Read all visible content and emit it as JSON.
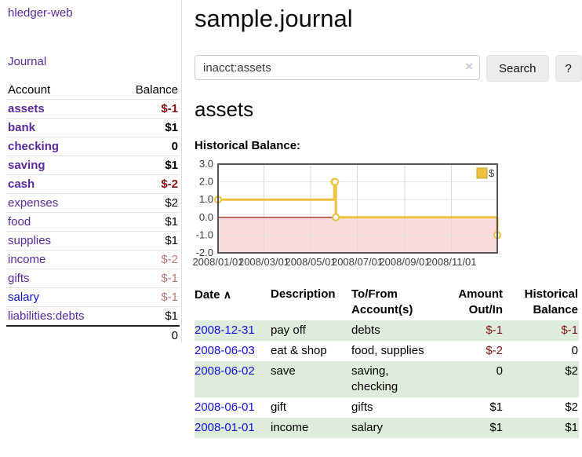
{
  "app": {
    "brand": "hledger-web",
    "nav_journal": "Journal"
  },
  "colors": {
    "accent_purple": "#5b2a9d",
    "link_blue": "#0f10dc",
    "negative_strong": "#7f1010",
    "negative_soft": "#be7878",
    "row_stripe_green": "#deecdb",
    "chart_line_gold": "#edc240",
    "chart_zero_line": "#8b0000",
    "chart_negative_fill": "#fbdada"
  },
  "header": {
    "title": "sample.journal"
  },
  "search": {
    "value": "inacct:assets",
    "clear_icon": "×",
    "button_label": "Search",
    "help_label": "?"
  },
  "account_page": {
    "heading": "assets",
    "chart_label": "Historical Balance:"
  },
  "sidebar": {
    "columns": {
      "account": "Account",
      "balance": "Balance"
    },
    "accounts": [
      {
        "name": "assets",
        "balance": "$-1"
      },
      {
        "name": "bank",
        "balance": "$1"
      },
      {
        "name": "checking",
        "balance": "0"
      },
      {
        "name": "saving",
        "balance": "$1"
      },
      {
        "name": "cash",
        "balance": "$-2"
      },
      {
        "name": "expenses",
        "balance": "$2"
      },
      {
        "name": "food",
        "balance": "$1"
      },
      {
        "name": "supplies",
        "balance": "$1"
      },
      {
        "name": "income",
        "balance": "$-2"
      },
      {
        "name": "gifts",
        "balance": "$-1"
      },
      {
        "name": "salary",
        "balance": "$-1"
      },
      {
        "name": "liabilities:debts",
        "balance": "$1"
      }
    ],
    "total": "0"
  },
  "chart_data": {
    "type": "line",
    "title": "Historical Balance",
    "steps": true,
    "series": [
      {
        "name": "$",
        "color": "#edc240",
        "points": [
          {
            "date": "2008-01-01",
            "value": 1
          },
          {
            "date": "2008-06-01",
            "value": 2
          },
          {
            "date": "2008-06-02",
            "value": 2
          },
          {
            "date": "2008-06-03",
            "value": 0
          },
          {
            "date": "2008-12-31",
            "value": -1
          }
        ]
      }
    ],
    "x_ticks": [
      {
        "date": "2008-01-01",
        "label": "2008/01/01"
      },
      {
        "date": "2008-03-01",
        "label": "2008/03/01"
      },
      {
        "date": "2008-05-01",
        "label": "2008/05/01"
      },
      {
        "date": "2008-07-01",
        "label": "2008/07/01"
      },
      {
        "date": "2008-09-01",
        "label": "2008/09/01"
      },
      {
        "date": "2008-11-01",
        "label": "2008/11/01"
      }
    ],
    "y_ticks": [
      "3.0",
      "2.0",
      "1.0",
      "0.0",
      "-1.0",
      "-2.0"
    ],
    "ylim": [
      -2,
      3
    ],
    "xlim": [
      "2008-01-01",
      "2008-12-31"
    ],
    "grid": true,
    "legend_position": "top-right",
    "legend_label": "$"
  },
  "register": {
    "sort_icon": "∧",
    "columns": [
      {
        "label": "Date"
      },
      {
        "label": "Description"
      },
      {
        "label": "To/From Account(s)"
      },
      {
        "label": "Amount Out/In"
      },
      {
        "label": "Historical Balance"
      }
    ],
    "rows": [
      {
        "date": "2008-12-31",
        "description": "pay off",
        "accounts": "debts",
        "amount": "$-1",
        "balance": "$-1"
      },
      {
        "date": "2008-06-03",
        "description": "eat & shop",
        "accounts": "food, supplies",
        "amount": "$-2",
        "balance": "0"
      },
      {
        "date": "2008-06-02",
        "description": "save",
        "accounts": "saving, checking",
        "amount": "0",
        "balance": "$2"
      },
      {
        "date": "2008-06-01",
        "description": "gift",
        "accounts": "gifts",
        "amount": "$1",
        "balance": "$2"
      },
      {
        "date": "2008-01-01",
        "description": "income",
        "accounts": "salary",
        "amount": "$1",
        "balance": "$1"
      }
    ]
  }
}
